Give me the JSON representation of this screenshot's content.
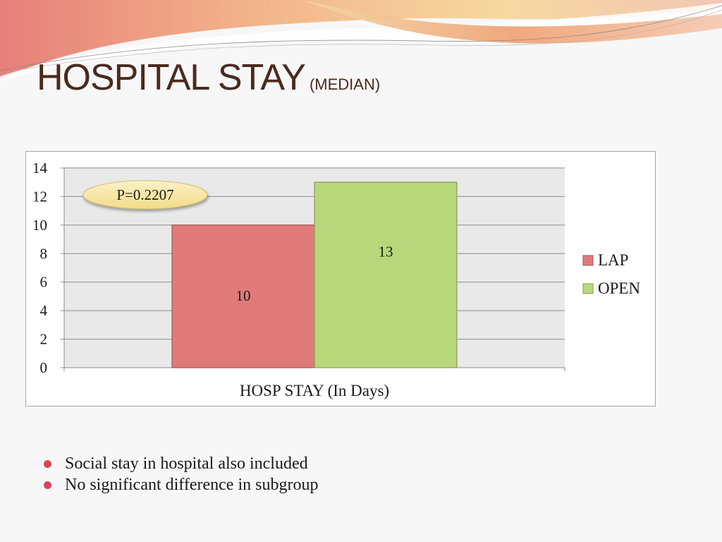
{
  "slide": {
    "title": "HOSPITAL STAY",
    "title_sub": "(MEDIAN)",
    "bullets": [
      "Social stay in hospital also included",
      "No significant difference in subgroup"
    ]
  },
  "colors": {
    "lap": "#e07a7a",
    "open": "#b7d77a",
    "plot_bg": "#e9e9e9",
    "bullet": "#d9455a"
  },
  "chart_data": {
    "type": "bar",
    "categories": [
      "HOSP STAY (In Days)"
    ],
    "series": [
      {
        "name": "LAP",
        "values": [
          10
        ]
      },
      {
        "name": "OPEN",
        "values": [
          13
        ]
      }
    ],
    "xlabel": "HOSP STAY (In Days)",
    "ylabel": "",
    "ylim": [
      0,
      14
    ],
    "yticks": [
      0,
      2,
      4,
      6,
      8,
      10,
      12,
      14
    ],
    "data_labels": [
      "10",
      "13"
    ],
    "annotation": "P=0.2207",
    "legend": "right",
    "grid": true
  }
}
